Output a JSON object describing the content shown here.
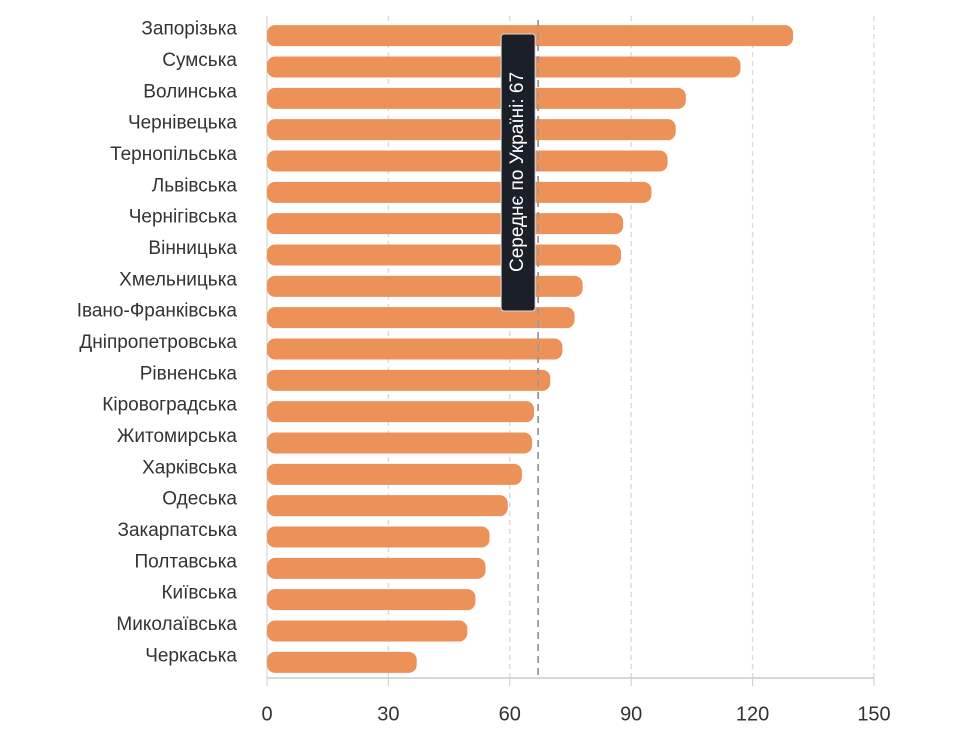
{
  "chart_data": {
    "type": "bar",
    "orientation": "horizontal",
    "categories": [
      "Запорізька",
      "Сумська",
      "Волинська",
      "Чернівецька",
      "Тернопільська",
      "Львівська",
      "Чернігівська",
      "Вінницька",
      "Хмельницька",
      "Івано-Франківська",
      "Дніпропетровська",
      "Рівненська",
      "Кіровоградська",
      "Житомирська",
      "Харківська",
      "Одеська",
      "Закарпатська",
      "Полтавська",
      "Київська",
      "Миколаївська",
      "Черкаська"
    ],
    "values": [
      130,
      117,
      103.5,
      101,
      99,
      95,
      88,
      87.5,
      78,
      76,
      73,
      70,
      66,
      65.5,
      63,
      59.5,
      55,
      54,
      51.5,
      49.5,
      37
    ],
    "color": "#ec9157",
    "xlim": [
      0,
      150
    ],
    "xticks": [
      0,
      30,
      60,
      90,
      120,
      150
    ],
    "grid": true,
    "average": {
      "value": 67,
      "label": "Середнє по Україні: 67"
    }
  }
}
